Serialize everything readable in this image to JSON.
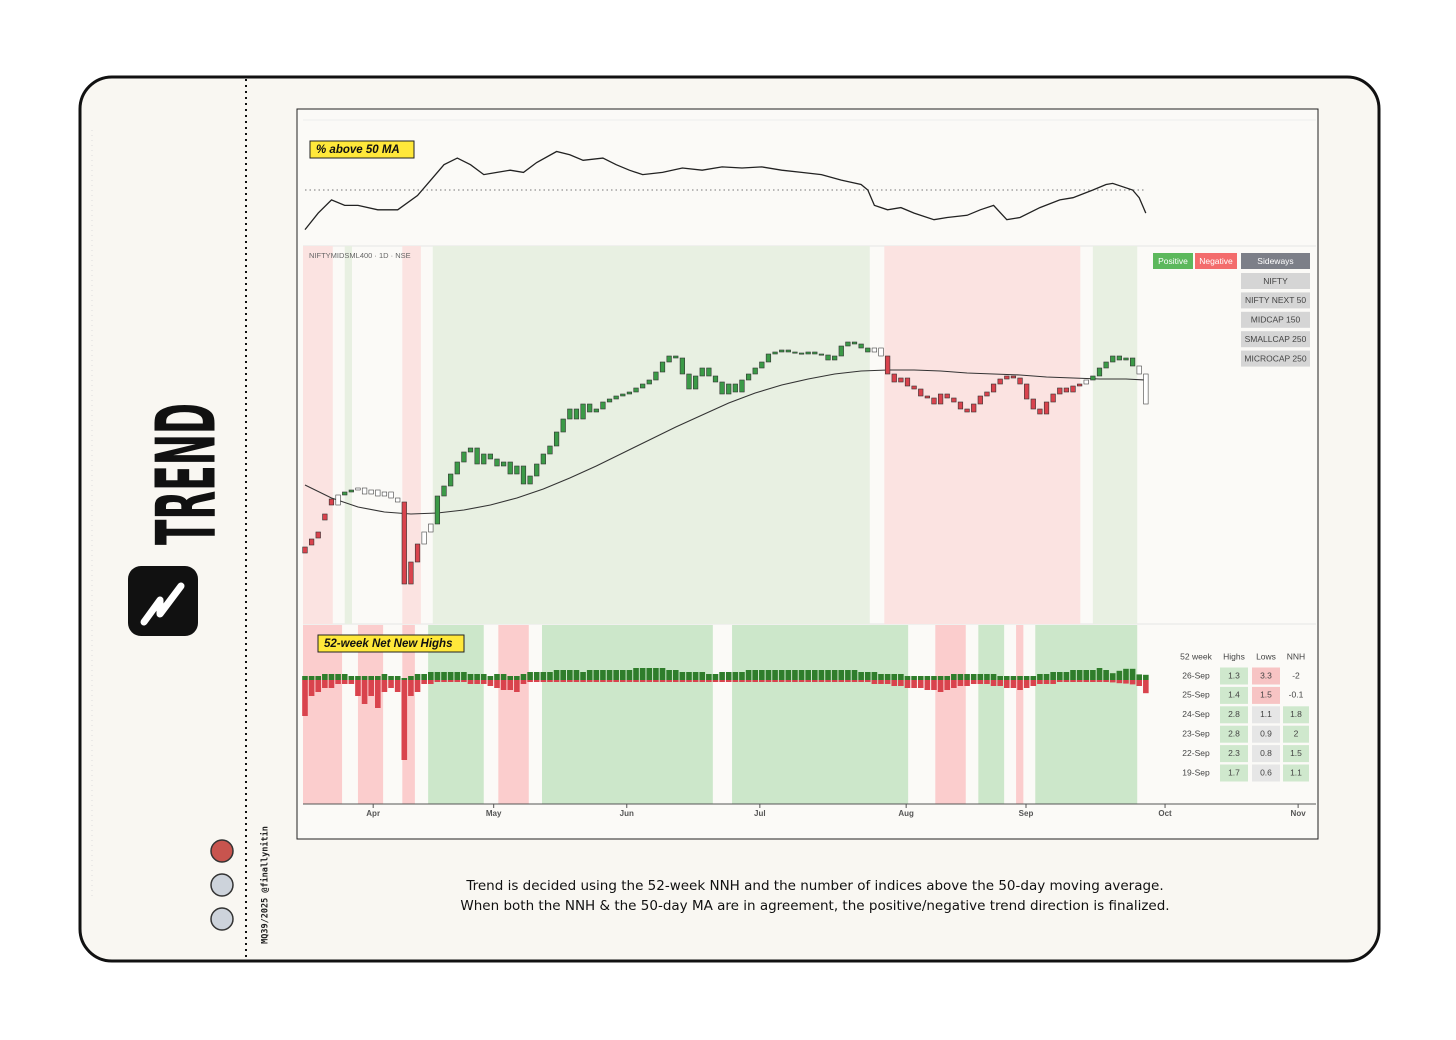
{
  "sidebar": {
    "title": "TREND",
    "credit": "MQ39/2025 @finallynitin"
  },
  "chart_data": [
    {
      "type": "line",
      "title": "% above 50 MA",
      "color": "#222222",
      "xlim": [
        -0.3,
        152.7
      ],
      "ylim": [
        0,
        100
      ],
      "reference": 50,
      "x": [
        0,
        2,
        4,
        6,
        8,
        11,
        14,
        17,
        19,
        21,
        23,
        25,
        27,
        29,
        31,
        33,
        35,
        38,
        40,
        42,
        45,
        47,
        49,
        51,
        54,
        57,
        60,
        63,
        66,
        69,
        72,
        75,
        78,
        81,
        84,
        85,
        86,
        88,
        90,
        92,
        95,
        97,
        100,
        102,
        104,
        106,
        108,
        111,
        114,
        116,
        119,
        121,
        122,
        125,
        126,
        127
      ],
      "values": [
        14,
        29,
        41,
        36,
        36,
        32,
        32,
        45,
        59,
        73,
        79,
        73,
        64,
        66,
        68,
        66,
        75,
        85,
        82,
        77,
        79,
        73,
        68,
        64,
        66,
        70,
        68,
        71,
        70,
        71,
        68,
        66,
        64,
        59,
        55,
        50,
        36,
        32,
        34,
        29,
        23,
        25,
        27,
        32,
        36,
        23,
        25,
        34,
        41,
        43,
        50,
        55,
        56,
        50,
        43,
        29
      ]
    },
    {
      "type": "candlestick",
      "title": "NIFTYMIDSML400 · 1D · NSE",
      "xlim": [
        -0.3,
        152.7
      ],
      "ylim": [
        0,
        378
      ],
      "open": [
        77,
        85,
        92,
        110,
        125,
        119,
        129,
        132,
        134,
        136,
        130,
        134,
        128,
        132,
        126,
        122,
        40,
        62,
        80,
        92,
        100,
        128,
        138,
        150,
        162,
        172,
        176,
        160,
        170,
        165,
        158,
        162,
        150,
        158,
        140,
        148,
        160,
        170,
        178,
        192,
        205,
        215,
        205,
        220,
        212,
        215,
        222,
        225,
        228,
        230,
        232,
        236,
        240,
        244,
        252,
        262,
        268,
        266,
        250,
        235,
        248,
        256,
        248,
        242,
        230,
        240,
        232,
        244,
        250,
        256,
        262,
        270,
        272,
        274,
        272,
        271,
        270,
        272,
        270,
        269,
        264,
        268,
        278,
        282,
        280,
        276,
        272,
        276,
        268,
        250,
        242,
        246,
        238,
        235,
        228,
        226,
        220,
        230,
        226,
        222,
        215,
        212,
        220,
        228,
        232,
        240,
        245,
        248,
        246,
        240,
        225,
        215,
        210,
        222,
        230,
        236,
        232,
        238,
        240,
        244,
        248,
        256,
        262,
        268,
        264,
        266,
        258,
        250
      ],
      "close": [
        71,
        79,
        86,
        104,
        119,
        129,
        132,
        134,
        136,
        130,
        134,
        128,
        132,
        126,
        122,
        40,
        62,
        80,
        92,
        100,
        128,
        138,
        150,
        162,
        172,
        176,
        160,
        170,
        165,
        158,
        162,
        150,
        158,
        140,
        148,
        160,
        170,
        178,
        192,
        205,
        215,
        205,
        220,
        212,
        215,
        222,
        225,
        228,
        230,
        232,
        236,
        240,
        244,
        252,
        262,
        268,
        266,
        250,
        235,
        248,
        256,
        248,
        242,
        230,
        240,
        232,
        244,
        250,
        256,
        262,
        270,
        272,
        274,
        272,
        271,
        270,
        272,
        270,
        269,
        264,
        268,
        278,
        282,
        280,
        276,
        272,
        276,
        268,
        250,
        242,
        246,
        238,
        235,
        228,
        226,
        220,
        230,
        226,
        222,
        215,
        212,
        220,
        228,
        232,
        240,
        245,
        248,
        246,
        240,
        225,
        215,
        210,
        222,
        230,
        236,
        232,
        238,
        240,
        244,
        248,
        256,
        262,
        268,
        264,
        266,
        258,
        250,
        220
      ],
      "ma": {
        "color": "#333333",
        "x": [
          0,
          4,
          8,
          12,
          16,
          20,
          24,
          28,
          32,
          36,
          40,
          44,
          48,
          52,
          56,
          60,
          64,
          68,
          72,
          76,
          80,
          84,
          88,
          92,
          96,
          100,
          104,
          108,
          112,
          116,
          120,
          124,
          127
        ],
        "values": [
          139,
          126,
          117,
          112,
          110,
          111,
          114,
          119,
          126,
          135,
          146,
          158,
          171,
          184,
          197,
          209,
          221,
          231,
          239,
          245,
          250,
          253,
          254,
          254,
          253,
          251,
          250,
          249,
          247,
          246,
          245,
          245,
          244
        ]
      },
      "bands": [
        {
          "from": -0.3,
          "to": 4.2,
          "trend": "negative"
        },
        {
          "from": 6.0,
          "to": 7.1,
          "trend": "positive"
        },
        {
          "from": 14.7,
          "to": 17.5,
          "trend": "negative"
        },
        {
          "from": 19.3,
          "to": 85.3,
          "trend": "positive"
        },
        {
          "from": 87.5,
          "to": 117.1,
          "trend": "negative"
        },
        {
          "from": 119.0,
          "to": 125.7,
          "trend": "positive"
        }
      ],
      "band_colors": {
        "positive": "#e8f0e2",
        "negative": "#fbe3e1"
      },
      "candle_colors": {
        "positive": "#3b9a47",
        "negative": "#d9434d",
        "sideways": "#ffffff"
      },
      "legend": [
        {
          "label": "Positive",
          "color": "#5cb85c"
        },
        {
          "label": "Negative",
          "color": "#f36c6c"
        },
        {
          "label": "Sideways",
          "color": "#7c7f88"
        }
      ],
      "indices": [
        "NIFTY",
        "NIFTY NEXT 50",
        "MIDCAP 150",
        "SMALLCAP 250",
        "MICROCAP 250"
      ]
    },
    {
      "type": "bar",
      "title": "52-week Net New Highs",
      "xlim": [
        -0.3,
        152.7
      ],
      "ylim": [
        -31,
        13.75
      ],
      "xticks": [
        {
          "value": 10.3,
          "label": "Apr"
        },
        {
          "value": 28.5,
          "label": "May"
        },
        {
          "value": 48.6,
          "label": "Jun"
        },
        {
          "value": 68.7,
          "label": "Jul"
        },
        {
          "value": 90.8,
          "label": "Aug"
        },
        {
          "value": 108.9,
          "label": "Sep"
        },
        {
          "value": 129.9,
          "label": "Oct"
        },
        {
          "value": 150.0,
          "label": "Nov"
        }
      ],
      "series": [
        {
          "color": "#2f7d2b",
          "values": [
            1,
            1,
            1,
            1.5,
            1.5,
            1.5,
            1.5,
            1,
            1,
            1,
            1,
            1,
            1.5,
            1,
            1,
            0.5,
            1,
            1.5,
            1.5,
            2,
            2,
            2,
            2,
            2,
            2,
            1.5,
            1.5,
            1.5,
            1,
            1.5,
            1.5,
            1,
            1,
            1.5,
            2,
            2,
            2,
            2,
            2.5,
            2.5,
            2.5,
            2.5,
            2,
            2.5,
            2.5,
            2.5,
            2.5,
            2.5,
            2.5,
            2.5,
            3,
            3,
            3,
            3,
            3,
            2.5,
            2.5,
            2,
            2,
            2,
            2,
            1.5,
            1.5,
            2,
            2,
            2,
            2,
            2.5,
            2.5,
            2.5,
            2.5,
            2.5,
            2.5,
            2.5,
            2.5,
            2.5,
            2.5,
            2.5,
            2.5,
            2.5,
            2.5,
            2.5,
            2.5,
            2.5,
            2,
            2,
            2,
            1.5,
            1.5,
            1.5,
            1.5,
            1,
            1,
            1,
            1,
            1,
            1,
            1,
            1.5,
            1.5,
            1.5,
            1.5,
            1.5,
            1.5,
            1.5,
            1,
            1,
            1,
            1,
            1,
            1,
            1.5,
            1.5,
            2,
            2,
            2,
            2.5,
            2.5,
            2.5,
            2.5,
            3,
            2.5,
            1.7,
            2.3,
            2.8,
            2.8,
            1.4,
            1.3
          ]
        },
        {
          "color": "#d9434d",
          "values": [
            -9,
            -4,
            -3,
            -2,
            -2,
            -1,
            -1,
            -1,
            -4,
            -6,
            -4,
            -7,
            -3,
            -2,
            -3,
            -20,
            -4,
            -3,
            -1,
            -1,
            -0.5,
            -0.5,
            -0.5,
            -0.5,
            -0.5,
            -1,
            -1,
            -1,
            -1.5,
            -2,
            -2.5,
            -2.5,
            -3,
            -1,
            -0.5,
            -0.5,
            -0.5,
            -0.5,
            -0.5,
            -0.5,
            -0.5,
            -0.5,
            -0.5,
            -0.5,
            -0.5,
            -0.5,
            -0.5,
            -0.5,
            -0.5,
            -0.5,
            -0.5,
            -0.5,
            -0.5,
            -0.5,
            -0.5,
            -0.5,
            -0.5,
            -0.5,
            -0.5,
            -0.5,
            -0.5,
            -0.5,
            -0.5,
            -0.5,
            -0.5,
            -0.5,
            -0.5,
            -0.5,
            -0.5,
            -0.5,
            -0.5,
            -0.5,
            -0.5,
            -0.5,
            -0.5,
            -0.5,
            -0.5,
            -0.5,
            -0.5,
            -0.5,
            -0.5,
            -0.5,
            -0.5,
            -0.5,
            -0.5,
            -0.5,
            -1,
            -1,
            -1,
            -1.5,
            -1.5,
            -2,
            -2,
            -2,
            -2.5,
            -2.5,
            -3,
            -2.5,
            -2,
            -1.5,
            -1.5,
            -1,
            -1,
            -1,
            -1.5,
            -1.5,
            -2,
            -2,
            -2.5,
            -2,
            -1.5,
            -1,
            -1,
            -1,
            -0.5,
            -0.5,
            -0.5,
            -0.5,
            -0.5,
            -0.5,
            -0.5,
            -0.5,
            -0.6,
            -0.8,
            -0.9,
            -1.1,
            -1.5,
            -3.3
          ]
        }
      ],
      "bands": [
        {
          "from": -0.3,
          "to": 5.6,
          "trend": "negative"
        },
        {
          "from": 8.0,
          "to": 11.8,
          "trend": "negative"
        },
        {
          "from": 14.7,
          "to": 16.6,
          "trend": "negative"
        },
        {
          "from": 18.6,
          "to": 27.0,
          "trend": "positive"
        },
        {
          "from": 29.2,
          "to": 33.8,
          "trend": "negative"
        },
        {
          "from": 35.8,
          "to": 61.6,
          "trend": "positive"
        },
        {
          "from": 64.5,
          "to": 91.1,
          "trend": "positive"
        },
        {
          "from": 95.2,
          "to": 99.8,
          "trend": "negative"
        },
        {
          "from": 101.7,
          "to": 105.6,
          "trend": "positive"
        },
        {
          "from": 107.4,
          "to": 108.5,
          "trend": "negative"
        },
        {
          "from": 110.3,
          "to": 125.7,
          "trend": "positive"
        }
      ],
      "band_colors": {
        "positive": "#cce7ca",
        "negative": "#fbcdcd"
      }
    }
  ],
  "table": {
    "header": [
      "52 week",
      "Highs",
      "Lows",
      "NNH"
    ],
    "rows": [
      [
        "26-Sep",
        1.3,
        3.3,
        -2
      ],
      [
        "25-Sep",
        1.4,
        1.5,
        -0.1
      ],
      [
        "24-Sep",
        2.8,
        1.1,
        1.8
      ],
      [
        "23-Sep",
        2.8,
        0.9,
        2
      ],
      [
        "22-Sep",
        2.3,
        0.8,
        1.5
      ],
      [
        "19-Sep",
        1.7,
        0.6,
        1.1
      ]
    ]
  },
  "caption": [
    "Trend is decided using the 52-week NNH and the number of indices above the 50-day moving average.",
    "When both the NNH & the 50-day MA are in agreement, the positive/negative trend direction is finalized."
  ]
}
